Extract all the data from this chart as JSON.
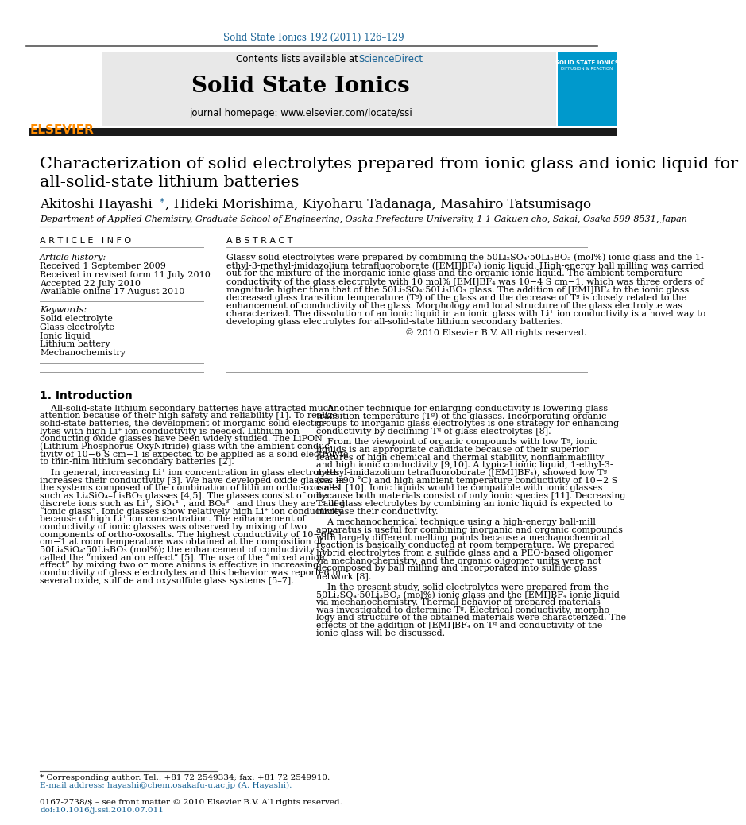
{
  "journal_ref": "Solid State Ionics 192 (2011) 126–129",
  "contents_line": "Contents lists available at ",
  "sciencedirect_text": "ScienceDirect",
  "journal_name": "Solid State Ionics",
  "journal_homepage": "journal homepage: www.elsevier.com/locate/ssi",
  "title_line1": "Characterization of solid electrolytes prepared from ionic glass and ionic liquid for",
  "title_line2": "all-solid-state lithium batteries",
  "author_part1": "Akitoshi Hayashi",
  "author_star": "*",
  "author_part2": ", Hideki Morishima, Kiyoharu Tadanaga, Masahiro Tatsumisago",
  "affiliation": "Department of Applied Chemistry, Graduate School of Engineering, Osaka Prefecture University, 1-1 Gakuen-cho, Sakai, Osaka 599-8531, Japan",
  "article_info_header": "A R T I C L E   I N F O",
  "abstract_header": "A B S T R A C T",
  "article_history_label": "Article history:",
  "received1": "Received 1 September 2009",
  "received2": "Received in revised form 11 July 2010",
  "accepted": "Accepted 22 July 2010",
  "available": "Available online 17 August 2010",
  "keywords_label": "Keywords:",
  "keywords": [
    "Solid electrolyte",
    "Glass electrolyte",
    "Ionic liquid",
    "Lithium battery",
    "Mechanochemistry"
  ],
  "abstract_lines": [
    "Glassy solid electrolytes were prepared by combining the 50Li₂SO₄·50Li₃BO₃ (mol%) ionic glass and the 1-",
    "ethyl-3-methyl-imidazolium tetrafluoroborate ([EMI]BF₄) ionic liquid. High-energy ball milling was carried",
    "out for the mixture of the inorganic ionic glass and the organic ionic liquid. The ambient temperature",
    "conductivity of the glass electrolyte with 10 mol% [EMI]BF₄ was 10−4 S cm−1, which was three orders of",
    "magnitude higher than that of the 50Li₂SO₄·50Li₃BO₃ glass. The addition of [EMI]BF₄ to the ionic glass",
    "decreased glass transition temperature (Tᵍ) of the glass and the decrease of Tᵍ is closely related to the",
    "enhancement of conductivity of the glass. Morphology and local structure of the glass electrolyte was",
    "characterized. The dissolution of an ionic liquid in an ionic glass with Li⁺ ion conductivity is a novel way to",
    "developing glass electrolytes for all-solid-state lithium secondary batteries."
  ],
  "copyright": "© 2010 Elsevier B.V. All rights reserved.",
  "intro_header": "1. Introduction",
  "intro_col1_lines": [
    "    All-solid-state lithium secondary batteries have attracted much",
    "attention because of their high safety and reliability [1]. To realize",
    "solid-state batteries, the development of inorganic solid electro-",
    "lytes with high Li⁺ ion conductivity is needed. Lithium ion",
    "conducting oxide glasses have been widely studied. The LiPON",
    "(Lithium Phosphorus OxyNitride) glass with the ambient conduc-",
    "tivity of 10−6 S cm−1 is expected to be applied as a solid electrolyte",
    "to thin-film lithium secondary batteries [2].",
    "",
    "    In general, increasing Li⁺ ion concentration in glass electrolytes",
    "increases their conductivity [3]. We have developed oxide glasses in",
    "the systems composed of the combination of lithium ortho-oxosalts",
    "such as Li₄SiO₄–Li₃BO₃ glasses [4,5]. The glasses consist of only",
    "discrete ions such as Li⁺, SiO₄⁴⁻, and BO₃³⁻ and thus they are called",
    "“ionic glass”. Ionic glasses show relatively high Li⁺ ion conductivity",
    "because of high Li⁺ ion concentration. The enhancement of",
    "conductivity of ionic glasses was observed by mixing of two",
    "components of ortho-oxosalts. The highest conductivity of 10−6 S",
    "cm−1 at room temperature was obtained at the composition of",
    "50Li₄SiO₄·50Li₃BO₃ (mol%); the enhancement of conductivity is",
    "called the “mixed anion effect” [5]. The use of the “mixed anion",
    "effect” by mixing two or more anions is effective in increasing",
    "conductivity of glass electrolytes and this behavior was reported in",
    "several oxide, sulfide and oxysulfide glass systems [5–7]."
  ],
  "intro_col2_lines": [
    "    Another technique for enlarging conductivity is lowering glass",
    "transition temperature (Tᵍ) of the glasses. Incorporating organic",
    "groups to inorganic glass electrolytes is one strategy for enhancing",
    "conductivity by declining Tᵍ of glass electrolytes [8].",
    "",
    "    From the viewpoint of organic compounds with low Tᵍ, ionic",
    "liquids is an appropriate candidate because of their superior",
    "features of high chemical and thermal stability, nonflammability",
    "and high ionic conductivity [9,10]. A typical ionic liquid, 1-ethyl-3-",
    "methyl-imidazolium tetrafluoroborate ([EMI]BF₄), showed low Tᵍ",
    "(ca. −90 °C) and high ambient temperature conductivity of 10−2 S",
    "cm−1 [10]. Ionic liquids would be compatible with ionic glasses",
    "because both materials consist of only ionic species [11]. Decreasing",
    "Tᵍ of glass electrolytes by combining an ionic liquid is expected to",
    "increase their conductivity.",
    "",
    "    A mechanochemical technique using a high-energy ball-mill",
    "apparatus is useful for combining inorganic and organic compounds",
    "with largely different melting points because a mechanochemical",
    "reaction is basically conducted at room temperature. We prepared",
    "hybrid electrolytes from a sulfide glass and a PEO-based oligomer",
    "via mechanochemistry, and the organic oligomer units were not",
    "decomposed by ball milling and incorporated into sulfide glass",
    "network [8].",
    "",
    "    In the present study, solid electrolytes were prepared from the",
    "50Li₂SO₄·50Li₃BO₃ (mol%) ionic glass and the [EMI]BF₄ ionic liquid",
    "via mechanochemistry. Thermal behavior of prepared materials",
    "was investigated to determine Tᵍ. Electrical conductivity, morpho-",
    "logy and structure of the obtained materials were characterized. The",
    "effects of the addition of [EMI]BF₄ on Tᵍ and conductivity of the",
    "ionic glass will be discussed."
  ],
  "footnote1": "* Corresponding author. Tel.: +81 72 2549334; fax: +81 72 2549910.",
  "footnote2": "E-mail address: hayashi@chem.osakafu-u.ac.jp (A. Hayashi).",
  "footnote3": "0167-2738/$ – see front matter © 2010 Elsevier B.V. All rights reserved.",
  "footnote4": "doi:10.1016/j.ssi.2010.07.011",
  "elsevier_color": "#FF8C00",
  "sciencedirect_color": "#1a6496",
  "header_bg": "#e8e8e8",
  "sidebar_bg": "#0099CC"
}
